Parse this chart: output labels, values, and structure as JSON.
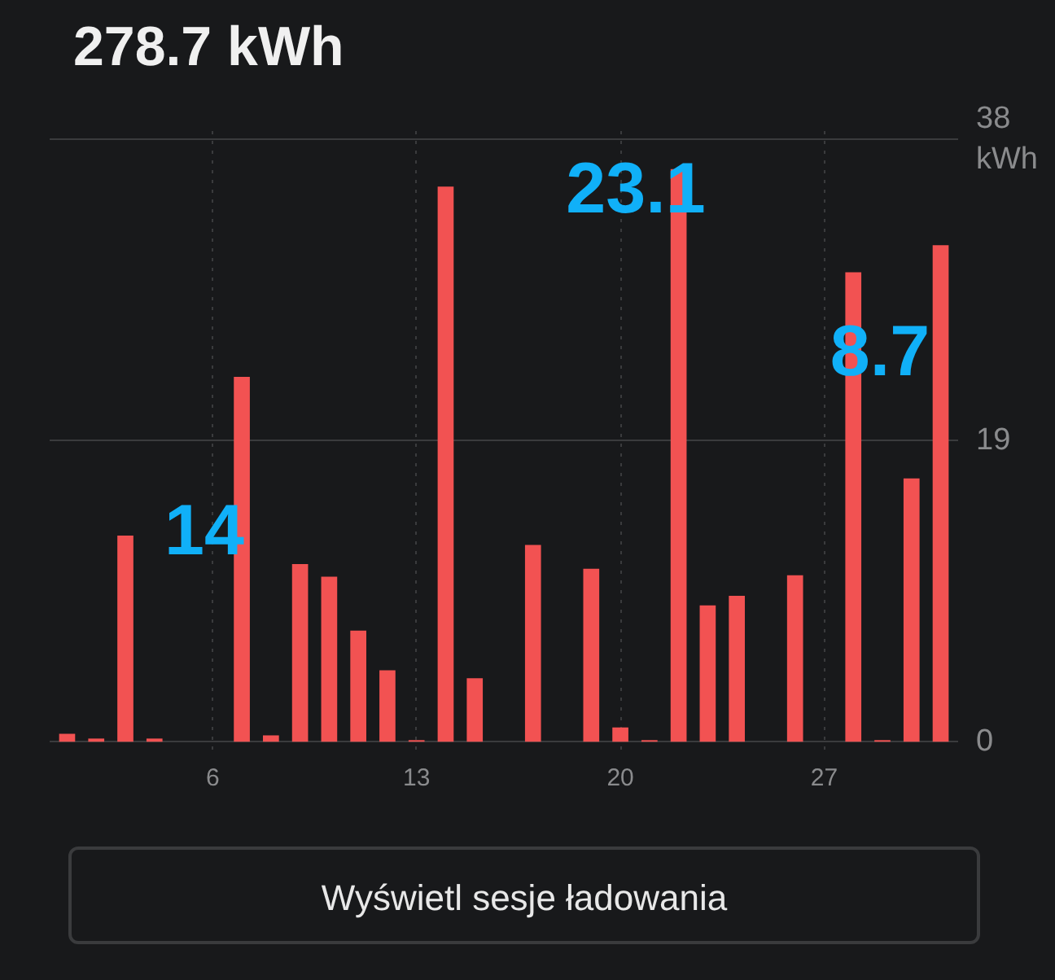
{
  "chart_data": {
    "type": "bar",
    "title": "278.7 kWh",
    "x": [
      1,
      2,
      3,
      4,
      5,
      6,
      7,
      8,
      9,
      10,
      11,
      12,
      13,
      14,
      15,
      16,
      17,
      18,
      19,
      20,
      21,
      22,
      23,
      24,
      25,
      26,
      27,
      28,
      29,
      30,
      31
    ],
    "values": [
      0.5,
      0.2,
      13,
      0.2,
      0,
      0,
      23,
      0.4,
      11.2,
      10.4,
      7,
      4.5,
      0.1,
      35,
      4,
      0,
      12.4,
      0,
      10.9,
      0.9,
      0.1,
      36.1,
      8.6,
      9.2,
      0,
      10.5,
      0,
      29.6,
      0.1,
      16.6,
      31.3
    ],
    "color": "#f25252",
    "xlim": [
      0.4,
      31.6
    ],
    "xticks": [
      6,
      13,
      20,
      27
    ],
    "ylim": [
      -0.5,
      38.5
    ],
    "yticks": [
      0,
      19,
      {
        "value": 38,
        "label": "38\nkWh"
      }
    ],
    "grid": true,
    "annotations": [
      "Wyświetl sesje ładowania",
      "14",
      "23.1",
      "8.7"
    ]
  }
}
